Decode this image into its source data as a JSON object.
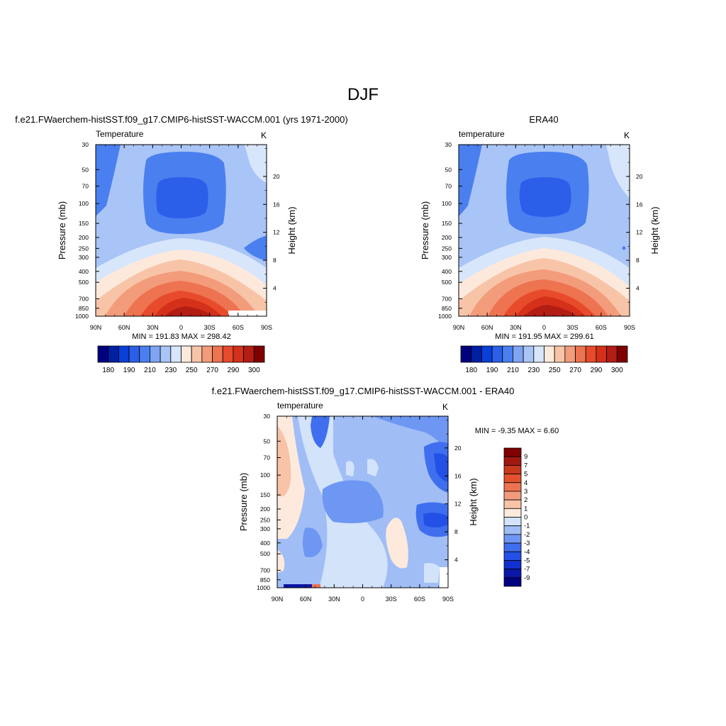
{
  "figure": {
    "title": "DJF"
  },
  "colors": {
    "abs_levels": [
      "#00007f",
      "#001fa3",
      "#0a3fd8",
      "#2b5ee9",
      "#4a7ff0",
      "#7fa4f2",
      "#a9c4f6",
      "#d7e6fb",
      "#fde9dc",
      "#f8c4a8",
      "#f29c7b",
      "#ed7351",
      "#e84b2b",
      "#d4301a",
      "#b31d13",
      "#7f0000"
    ],
    "diff_levels": [
      "#000080",
      "#0a17a8",
      "#1230cf",
      "#2350e6",
      "#3f6fef",
      "#6e97f3",
      "#a0bdf6",
      "#d2e3fa",
      "#fdeadd",
      "#f8c3a7",
      "#f29b7c",
      "#ec7352",
      "#e5512e",
      "#c83a1d",
      "#a01810",
      "#800000"
    ]
  },
  "chart_data": [
    {
      "type": "heatmap",
      "id": "model",
      "title": "f.e21.FWaerchem-histSST.f09_g17.CMIP6-histSST-WACCM.001 (yrs 1971-2000)",
      "left_string": "Temperature",
      "right_string": "K",
      "ylabel": "Pressure (mb)",
      "y2label": "Height (km)",
      "x_ticks": [
        "90N",
        "60N",
        "30N",
        "0",
        "30S",
        "60S",
        "90S"
      ],
      "y_ticks": [
        "30",
        "50",
        "70",
        "100",
        "150",
        "200",
        "250",
        "300",
        "400",
        "500",
        "700",
        "850",
        "1000"
      ],
      "y2_ticks": [
        "20",
        "16",
        "12",
        "8",
        "4"
      ],
      "xlim": [
        90,
        -90
      ],
      "ylim_mb": [
        1000,
        30
      ],
      "stats": "MIN = 191.83  MAX = 298.42",
      "min": 191.83,
      "max": 298.42,
      "colorbar_labels": [
        "180",
        "190",
        "210",
        "230",
        "250",
        "270",
        "290",
        "300"
      ],
      "colorbar_orientation": "horizontal"
    },
    {
      "type": "heatmap",
      "id": "obs",
      "title": "ERA40",
      "left_string": "temperature",
      "right_string": "K",
      "ylabel": "Pressure (mb)",
      "y2label": "Height (km)",
      "x_ticks": [
        "90N",
        "60N",
        "30N",
        "0",
        "30S",
        "60S",
        "90S"
      ],
      "y_ticks": [
        "30",
        "50",
        "70",
        "100",
        "150",
        "200",
        "250",
        "300",
        "400",
        "500",
        "700",
        "850",
        "1000"
      ],
      "y2_ticks": [
        "20",
        "16",
        "12",
        "8",
        "4"
      ],
      "xlim": [
        90,
        -90
      ],
      "ylim_mb": [
        1000,
        30
      ],
      "stats": "MIN = 191.95  MAX = 299.61",
      "min": 191.95,
      "max": 299.61,
      "colorbar_labels": [
        "180",
        "190",
        "210",
        "230",
        "250",
        "270",
        "290",
        "300"
      ],
      "colorbar_orientation": "horizontal"
    },
    {
      "type": "heatmap",
      "id": "diff",
      "title": "f.e21.FWaerchem-histSST.f09_g17.CMIP6-histSST-WACCM.001 - ERA40",
      "left_string": "temperature",
      "right_string": "K",
      "ylabel": "Pressure (mb)",
      "y2label": "Height (km)",
      "x_ticks": [
        "90N",
        "60N",
        "30N",
        "0",
        "30S",
        "60S",
        "90S"
      ],
      "y_ticks": [
        "30",
        "50",
        "70",
        "100",
        "150",
        "200",
        "250",
        "300",
        "400",
        "500",
        "700",
        "850",
        "1000"
      ],
      "y2_ticks": [
        "20",
        "16",
        "12",
        "8",
        "4"
      ],
      "xlim": [
        90,
        -90
      ],
      "ylim_mb": [
        1000,
        30
      ],
      "stats": "MIN =  -9.35  MAX =   6.60",
      "min": -9.35,
      "max": 6.6,
      "colorbar_labels": [
        "9",
        "7",
        "5",
        "4",
        "3",
        "2",
        "1",
        "0",
        "-1",
        "-2",
        "-3",
        "-4",
        "-5",
        "-7",
        "-9"
      ],
      "colorbar_orientation": "vertical"
    }
  ]
}
